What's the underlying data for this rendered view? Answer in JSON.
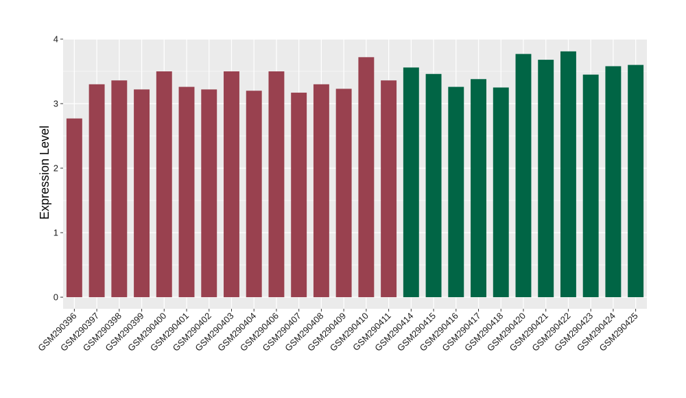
{
  "chart_data": {
    "type": "bar",
    "title": "",
    "xlabel": "",
    "ylabel": "Expression Level",
    "ylim": [
      -0.18,
      4.0
    ],
    "yticks": [
      0,
      1,
      2,
      3,
      4
    ],
    "grid": true,
    "colors": {
      "group_1": "#99414f",
      "group_2": "#016545",
      "panel": "#ebebeb",
      "grid": "#ffffff"
    },
    "categories": [
      "GSM290396",
      "GSM290397",
      "GSM290398",
      "GSM290399",
      "GSM290400",
      "GSM290401",
      "GSM290402",
      "GSM290403",
      "GSM290404",
      "GSM290406",
      "GSM290407",
      "GSM290408",
      "GSM290409",
      "GSM290410",
      "GSM290411",
      "GSM290414",
      "GSM290415",
      "GSM290416",
      "GSM290417",
      "GSM290418",
      "GSM290420",
      "GSM290421",
      "GSM290422",
      "GSM290423",
      "GSM290424",
      "GSM290425"
    ],
    "values": [
      2.77,
      3.3,
      3.36,
      3.22,
      3.5,
      3.26,
      3.22,
      3.5,
      3.2,
      3.5,
      3.17,
      3.3,
      3.23,
      3.72,
      3.36,
      3.56,
      3.46,
      3.26,
      3.38,
      3.25,
      3.77,
      3.68,
      3.81,
      3.45,
      3.58,
      3.6
    ],
    "groups": [
      1,
      1,
      1,
      1,
      1,
      1,
      1,
      1,
      1,
      1,
      1,
      1,
      1,
      1,
      1,
      2,
      2,
      2,
      2,
      2,
      2,
      2,
      2,
      2,
      2,
      2
    ]
  }
}
